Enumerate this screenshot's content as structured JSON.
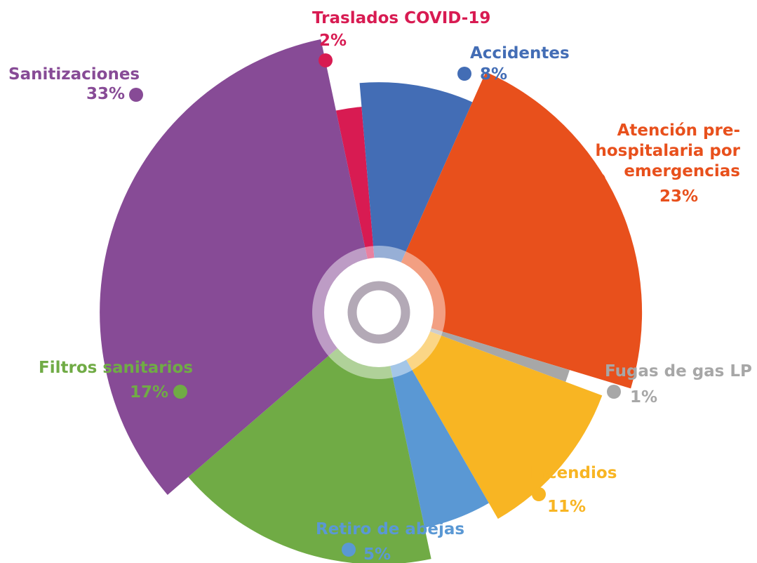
{
  "chart_data": {
    "type": "pie",
    "categories": [
      "Traslados COVID-19",
      "Accidentes",
      "Atención pre-hospitalaria por emergencias",
      "Fugas de gas LP",
      "Incendios",
      "Retiro de abejas",
      "Filtros sanitarios",
      "Sanitizaciones"
    ],
    "values": [
      2,
      8,
      23,
      1,
      11,
      5,
      17,
      33
    ],
    "value_labels": [
      "2%",
      "8%",
      "23%",
      "1%",
      "11%",
      "5%",
      "17%",
      "33%"
    ],
    "colors": [
      "#d81b52",
      "#436db5",
      "#e8501c",
      "#a7a7a7",
      "#f8b523",
      "#5a98d4",
      "#70ab45",
      "#874b96"
    ]
  }
}
